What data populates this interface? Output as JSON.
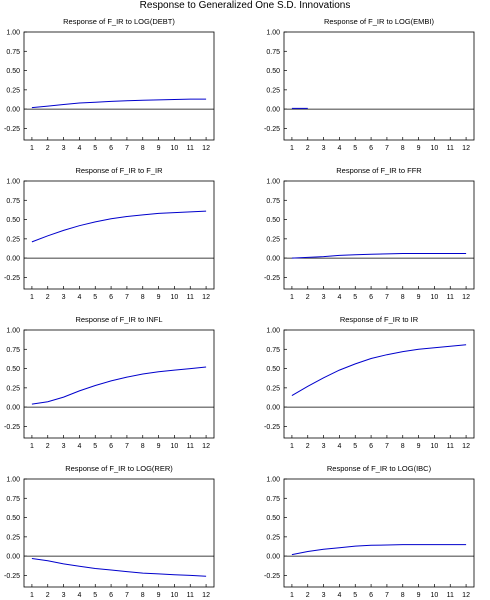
{
  "title": "Response to Generalized One S.D. Innovations",
  "chart_data": [
    {
      "type": "line",
      "title": "Response of F_IR to LOG(DEBT)",
      "x": [
        1,
        2,
        3,
        4,
        5,
        6,
        7,
        8,
        9,
        10,
        11,
        12
      ],
      "series": [
        {
          "values": [
            0.02,
            0.04,
            0.06,
            0.08,
            0.09,
            0.1,
            0.11,
            0.115,
            0.12,
            0.125,
            0.13,
            0.13
          ]
        }
      ],
      "xticks": [
        "1",
        "2",
        "3",
        "4",
        "5",
        "6",
        "7",
        "8",
        "9",
        "10",
        "11",
        "12"
      ],
      "yticks": [
        "1.00",
        "0.75",
        "0.50",
        "0.25",
        "0.00",
        "-0.25"
      ],
      "ylim": [
        -0.4,
        1.0
      ],
      "line_color": "#0000cc"
    },
    {
      "type": "line",
      "title": "Response of F_IR to LOG(EMBI)",
      "x": [
        1,
        2
      ],
      "series": [
        {
          "values": [
            0.01,
            0.01
          ]
        }
      ],
      "xticks": [
        "1",
        "2",
        "3",
        "4",
        "5",
        "6",
        "7",
        "8",
        "9",
        "10",
        "11",
        "12"
      ],
      "yticks": [
        "1.00",
        "0.75",
        "0.50",
        "0.25",
        "0.00",
        "-0.25"
      ],
      "ylim": [
        -0.4,
        1.0
      ],
      "line_color": "#0000cc"
    },
    {
      "type": "line",
      "title": "Response of F_IR to F_IR",
      "x": [
        1,
        2,
        3,
        4,
        5,
        6,
        7,
        8,
        9,
        10,
        11,
        12
      ],
      "series": [
        {
          "values": [
            0.21,
            0.29,
            0.36,
            0.42,
            0.47,
            0.51,
            0.54,
            0.56,
            0.58,
            0.59,
            0.6,
            0.61
          ]
        }
      ],
      "xticks": [
        "1",
        "2",
        "3",
        "4",
        "5",
        "6",
        "7",
        "8",
        "9",
        "10",
        "11",
        "12"
      ],
      "yticks": [
        "1.00",
        "0.75",
        "0.50",
        "0.25",
        "0.00",
        "-0.25"
      ],
      "ylim": [
        -0.4,
        1.0
      ],
      "line_color": "#0000cc"
    },
    {
      "type": "line",
      "title": "Response of F_IR to FFR",
      "x": [
        1,
        2,
        3,
        4,
        5,
        6,
        7,
        8,
        9,
        10,
        11,
        12
      ],
      "series": [
        {
          "values": [
            0.0,
            0.01,
            0.02,
            0.035,
            0.045,
            0.05,
            0.055,
            0.06,
            0.06,
            0.06,
            0.06,
            0.06
          ]
        }
      ],
      "xticks": [
        "1",
        "2",
        "3",
        "4",
        "5",
        "6",
        "7",
        "8",
        "9",
        "10",
        "11",
        "12"
      ],
      "yticks": [
        "1.00",
        "0.75",
        "0.50",
        "0.25",
        "0.00",
        "-0.25"
      ],
      "ylim": [
        -0.4,
        1.0
      ],
      "line_color": "#0000cc"
    },
    {
      "type": "line",
      "title": "Response of F_IR to INFL",
      "x": [
        1,
        2,
        3,
        4,
        5,
        6,
        7,
        8,
        9,
        10,
        11,
        12
      ],
      "series": [
        {
          "values": [
            0.04,
            0.07,
            0.13,
            0.21,
            0.28,
            0.34,
            0.39,
            0.43,
            0.46,
            0.48,
            0.5,
            0.52
          ]
        }
      ],
      "xticks": [
        "1",
        "2",
        "3",
        "4",
        "5",
        "6",
        "7",
        "8",
        "9",
        "10",
        "11",
        "12"
      ],
      "yticks": [
        "1.00",
        "0.75",
        "0.50",
        "0.25",
        "0.00",
        "-0.25"
      ],
      "ylim": [
        -0.4,
        1.0
      ],
      "line_color": "#0000cc"
    },
    {
      "type": "line",
      "title": "Response of F_IR to IR",
      "x": [
        1,
        2,
        3,
        4,
        5,
        6,
        7,
        8,
        9,
        10,
        11,
        12
      ],
      "series": [
        {
          "values": [
            0.15,
            0.27,
            0.38,
            0.48,
            0.56,
            0.63,
            0.68,
            0.72,
            0.75,
            0.77,
            0.79,
            0.81
          ]
        }
      ],
      "xticks": [
        "1",
        "2",
        "3",
        "4",
        "5",
        "6",
        "7",
        "8",
        "9",
        "10",
        "11",
        "12"
      ],
      "yticks": [
        "1.00",
        "0.75",
        "0.50",
        "0.25",
        "0.00",
        "-0.25"
      ],
      "ylim": [
        -0.4,
        1.0
      ],
      "line_color": "#0000cc"
    },
    {
      "type": "line",
      "title": "Response of F_IR to LOG(RER)",
      "x": [
        1,
        2,
        3,
        4,
        5,
        6,
        7,
        8,
        9,
        10,
        11,
        12
      ],
      "series": [
        {
          "values": [
            -0.03,
            -0.06,
            -0.1,
            -0.13,
            -0.16,
            -0.18,
            -0.2,
            -0.22,
            -0.23,
            -0.24,
            -0.25,
            -0.26
          ]
        }
      ],
      "xticks": [
        "1",
        "2",
        "3",
        "4",
        "5",
        "6",
        "7",
        "8",
        "9",
        "10",
        "11",
        "12"
      ],
      "yticks": [
        "1.00",
        "0.75",
        "0.50",
        "0.25",
        "0.00",
        "-0.25"
      ],
      "ylim": [
        -0.4,
        1.0
      ],
      "line_color": "#0000cc"
    },
    {
      "type": "line",
      "title": "Response of F_IR to LOG(IBC)",
      "x": [
        1,
        2,
        3,
        4,
        5,
        6,
        7,
        8,
        9,
        10,
        11,
        12
      ],
      "series": [
        {
          "values": [
            0.02,
            0.06,
            0.09,
            0.11,
            0.13,
            0.14,
            0.145,
            0.15,
            0.15,
            0.15,
            0.15,
            0.15
          ]
        }
      ],
      "xticks": [
        "1",
        "2",
        "3",
        "4",
        "5",
        "6",
        "7",
        "8",
        "9",
        "10",
        "11",
        "12"
      ],
      "yticks": [
        "1.00",
        "0.75",
        "0.50",
        "0.25",
        "0.00",
        "-0.25"
      ],
      "ylim": [
        -0.4,
        1.0
      ],
      "line_color": "#0000cc"
    }
  ]
}
